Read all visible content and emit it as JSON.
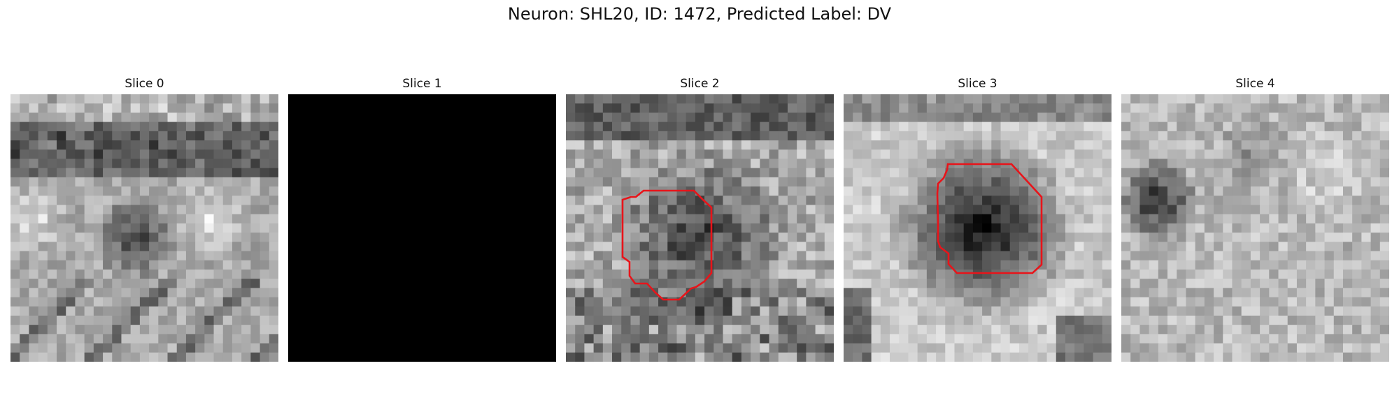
{
  "figure": {
    "title": "Neuron: SHL20, ID: 1472, Predicted Label: DV"
  },
  "contour_color": "#e8141a",
  "panels": [
    {
      "title": "Slice 0",
      "content": "grayscale-texture",
      "has_contour": false
    },
    {
      "title": "Slice 1",
      "content": "blank-black",
      "has_contour": false
    },
    {
      "title": "Slice 2",
      "content": "grayscale-texture",
      "has_contour": true
    },
    {
      "title": "Slice 3",
      "content": "grayscale-texture",
      "has_contour": true
    },
    {
      "title": "Slice 4",
      "content": "grayscale-texture",
      "has_contour": false
    }
  ]
}
